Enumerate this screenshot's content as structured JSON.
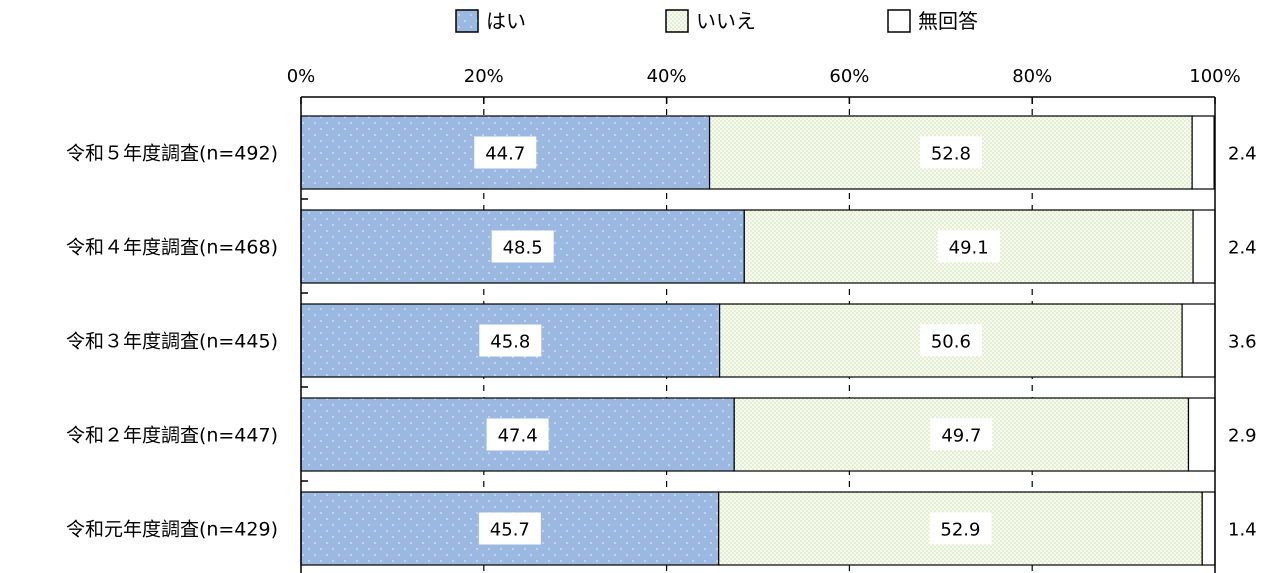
{
  "chart_data": {
    "type": "bar",
    "orientation": "horizontal",
    "stacked": "percent",
    "xlim": [
      0,
      100
    ],
    "x_ticks": [
      "0%",
      "20%",
      "40%",
      "60%",
      "80%",
      "100%"
    ],
    "categories": [
      "令和５年度調査(n=492)",
      "令和４年度調査(n=468)",
      "令和３年度調査(n=445)",
      "令和２年度調査(n=447)",
      "令和元年度調査(n=429)"
    ],
    "series": [
      {
        "name": "はい",
        "values": [
          44.7,
          48.5,
          45.8,
          47.4,
          45.7
        ],
        "color": "#9ab8e0"
      },
      {
        "name": "いいえ",
        "values": [
          52.8,
          49.1,
          50.6,
          49.7,
          52.9
        ],
        "color": "#eef5e2"
      },
      {
        "name": "無回答",
        "values": [
          2.4,
          2.4,
          3.6,
          2.9,
          1.4
        ],
        "color": "#ffffff"
      }
    ],
    "legend_position": "top",
    "gridlines": "dashed-vertical"
  }
}
